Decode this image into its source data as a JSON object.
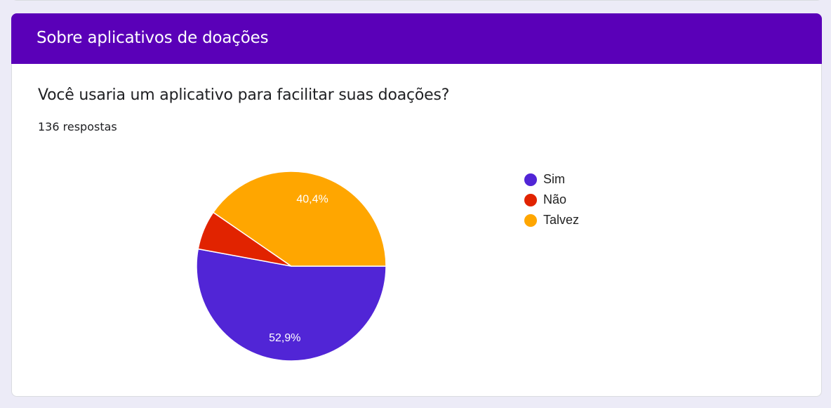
{
  "section": {
    "title": "Sobre aplicativos de doações"
  },
  "question": {
    "text": "Você usaria um aplicativo para facilitar suas doações?",
    "responses": "136 respostas"
  },
  "colors": {
    "header": "#5a00b8",
    "background": "#ecebf7"
  },
  "chart_data": {
    "type": "pie",
    "categories": [
      "Sim",
      "Não",
      "Talvez"
    ],
    "values": [
      52.9,
      6.7,
      40.4
    ],
    "labels": [
      "52,9%",
      "",
      "40,4%"
    ],
    "colors": [
      "#5125d6",
      "#e12300",
      "#ffa600"
    ],
    "legend_position": "right"
  }
}
